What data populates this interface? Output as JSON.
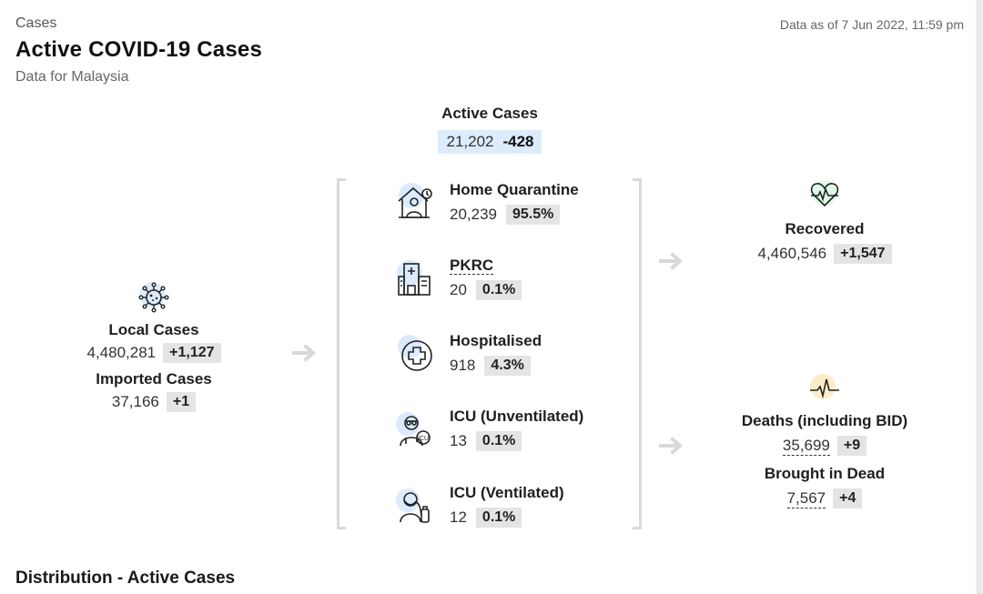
{
  "header": {
    "breadcrumb": "Cases",
    "title": "Active COVID-19 Cases",
    "subtitle": "Data for Malaysia",
    "data_as_of": "Data as of 7 Jun 2022, 11:59 pm"
  },
  "active": {
    "label": "Active Cases",
    "value": "21,202",
    "delta": "-428",
    "highlight_color": "#dcecfb"
  },
  "left": {
    "local_label": "Local Cases",
    "local_value": "4,480,281",
    "local_delta": "+1,127",
    "imported_label": "Imported Cases",
    "imported_value": "37,166",
    "imported_delta": "+1",
    "icon": "virus-icon"
  },
  "categories": [
    {
      "label": "Home Quarantine",
      "value": "20,239",
      "pct": "95.5%",
      "icon": "home-quarantine-icon"
    },
    {
      "label": "PKRC",
      "value": "20",
      "pct": "0.1%",
      "icon": "hospital-building-icon"
    },
    {
      "label": "Hospitalised",
      "value": "918",
      "pct": "4.3%",
      "icon": "medical-cross-icon"
    },
    {
      "label": "ICU (Unventilated)",
      "value": "13",
      "pct": "0.1%",
      "icon": "icu-doctor-icon"
    },
    {
      "label": "ICU (Ventilated)",
      "value": "12",
      "pct": "0.1%",
      "icon": "ventilated-patient-icon"
    }
  ],
  "right": {
    "recovered_label": "Recovered",
    "recovered_value": "4,460,546",
    "recovered_delta": "+1,547",
    "deaths_label": "Deaths (including BID)",
    "deaths_value": "35,699",
    "deaths_delta": "+9",
    "bid_label": "Brought in Dead",
    "bid_value": "7,567",
    "bid_delta": "+4",
    "recovered_icon": "heartbeat-icon",
    "deaths_icon": "pulse-line-icon"
  },
  "sections": {
    "distribution_heading": "Distribution - Active Cases"
  },
  "colors": {
    "badge_bg": "#e4e4e7",
    "active_bg": "#dcecfb",
    "icon_blue_bg": "#dbeafe",
    "icon_green_bg": "#dcfce7",
    "icon_yellow_bg": "#fdecc8",
    "arrow": "#d9d9d9"
  }
}
